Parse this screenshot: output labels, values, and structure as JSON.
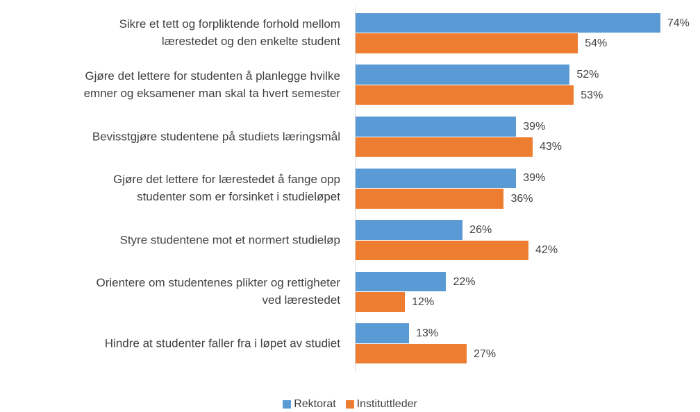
{
  "chart_data": {
    "type": "bar",
    "orientation": "horizontal",
    "categories": [
      "Sikre et tett og forpliktende forhold mellom\nlærestedet og den enkelte student",
      "Gjøre det lettere for studenten å planlegge hvilke\nemner og eksamener man skal ta hvert semester",
      "Bevisstgjøre studentene på studiets læringsmål",
      "Gjøre det lettere for lærestedet å fange opp\nstudenter som er forsinket i studieløpet",
      "Styre studentene mot et normert studieløp",
      "Orientere om studentenes plikter og rettigheter\nved lærestedet",
      "Hindre at studenter faller fra i løpet av studiet"
    ],
    "series": [
      {
        "name": "Rektorat",
        "color": "#5b9bd5",
        "values": [
          74,
          52,
          39,
          39,
          26,
          22,
          13
        ],
        "value_labels": [
          "74%",
          "52%",
          "39%",
          "39%",
          "26%",
          "22%",
          "13%"
        ]
      },
      {
        "name": "Instituttleder",
        "color": "#ed7d31",
        "values": [
          54,
          53,
          43,
          36,
          42,
          12,
          27
        ],
        "value_labels": [
          "54%",
          "53%",
          "43%",
          "36%",
          "42%",
          "12%",
          "27%"
        ]
      }
    ],
    "legend": "bottom"
  }
}
